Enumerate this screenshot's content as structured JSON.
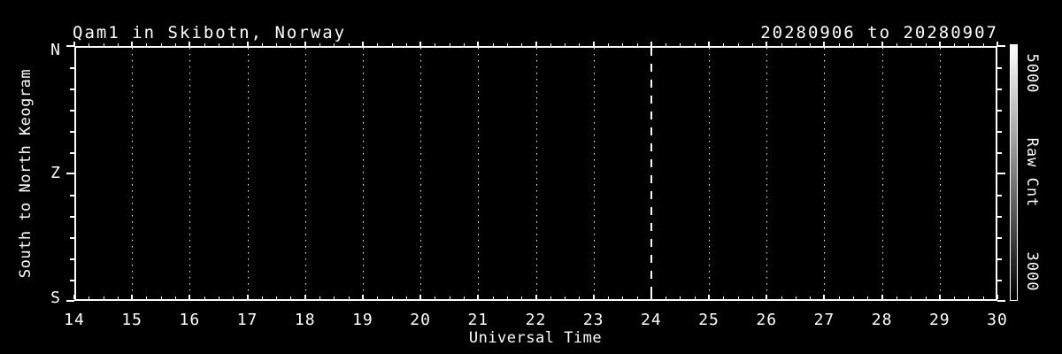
{
  "header": {
    "title": "Qam1 in Skibotn, Norway",
    "date_range": "20280906 to 20280907"
  },
  "x_axis": {
    "label": "Universal Time",
    "tick_labels": [
      "14",
      "15",
      "16",
      "17",
      "18",
      "19",
      "20",
      "21",
      "22",
      "23",
      "24",
      "25",
      "26",
      "27",
      "28",
      "29",
      "30"
    ]
  },
  "y_axis": {
    "label": "South to North Keogram",
    "tick_labels": [
      "N",
      "Z",
      "S"
    ]
  },
  "colorbar": {
    "top_label": "5000",
    "label": "Raw Cnt",
    "bottom_label": "3000"
  },
  "colors": {
    "background": "#000000",
    "foreground": "#ffffff",
    "colorbar_top": "#ffffff",
    "colorbar_bottom": "#000000"
  },
  "chart_data": {
    "type": "heatmap",
    "title": "Qam1 in Skibotn, Norway",
    "subtitle": "20280906 to 20280907",
    "xlabel": "Universal Time",
    "ylabel": "South to North Keogram",
    "xlim": [
      14,
      30
    ],
    "x_ticks": [
      14,
      15,
      16,
      17,
      18,
      19,
      20,
      21,
      22,
      23,
      24,
      25,
      26,
      27,
      28,
      29,
      30
    ],
    "x_minor_per_interval": 3,
    "y_ticks": [
      "N",
      "Z",
      "S"
    ],
    "y_minor_between_majors": 5,
    "grid": {
      "vertical": "dotted at each hour",
      "horizontal": "none"
    },
    "annotations": [
      {
        "type": "vline",
        "x": 24,
        "style": "dashed",
        "color": "#ffffff"
      }
    ],
    "series": [],
    "values_note": "keogram image area contains no visible data (entirely black)",
    "colorbar": {
      "label": "Raw Cnt",
      "min": 3000,
      "max": 5000,
      "scale": "grayscale, white at max"
    }
  }
}
